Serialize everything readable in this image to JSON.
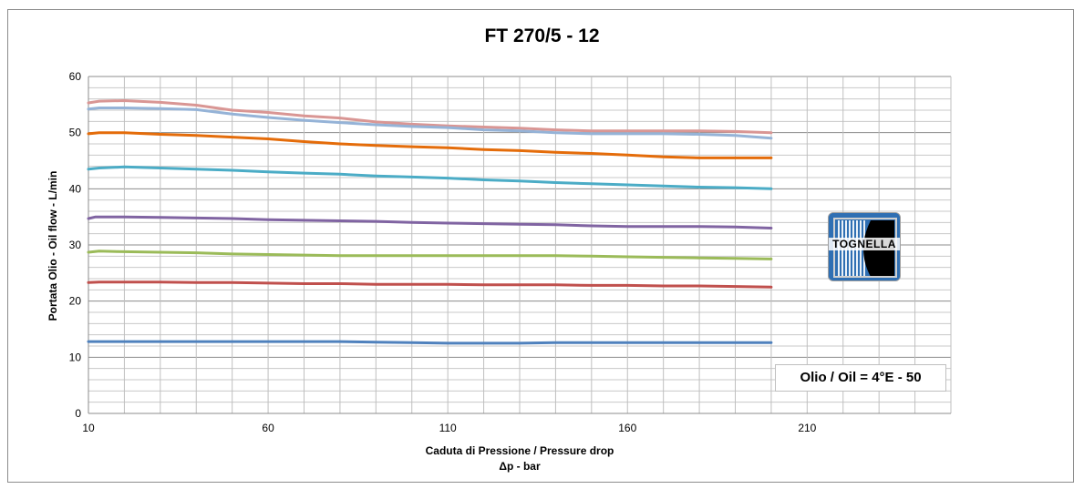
{
  "chart_data": {
    "type": "line",
    "title": "FT 270/5 - 12",
    "ylabel": "Portata Olio - Oil flow - L/min",
    "xlabel": "Caduta di Pressione / Pressure drop",
    "xlabel_line2": "Δp - bar",
    "xlim": [
      10,
      250
    ],
    "ylim": [
      0,
      60
    ],
    "xticks": [
      10,
      60,
      110,
      160,
      210
    ],
    "yticks": [
      0,
      10,
      20,
      30,
      40,
      50,
      60
    ],
    "grid": true,
    "annotation": "Olio / Oil = 4°E - 50",
    "logo_text": "TOGNELLA",
    "series": [
      {
        "color": "#d99694",
        "points": [
          [
            10,
            55.3
          ],
          [
            13,
            55.6
          ],
          [
            20,
            55.7
          ],
          [
            30,
            55.4
          ],
          [
            40,
            54.9
          ],
          [
            50,
            54.0
          ],
          [
            60,
            53.6
          ],
          [
            70,
            53.0
          ],
          [
            80,
            52.6
          ],
          [
            90,
            51.9
          ],
          [
            100,
            51.5
          ],
          [
            110,
            51.2
          ],
          [
            120,
            51.0
          ],
          [
            130,
            50.8
          ],
          [
            140,
            50.5
          ],
          [
            150,
            50.3
          ],
          [
            160,
            50.3
          ],
          [
            170,
            50.3
          ],
          [
            180,
            50.3
          ],
          [
            190,
            50.2
          ],
          [
            200,
            50.0
          ]
        ]
      },
      {
        "color": "#95b3d7",
        "points": [
          [
            10,
            54.2
          ],
          [
            13,
            54.4
          ],
          [
            20,
            54.4
          ],
          [
            30,
            54.3
          ],
          [
            40,
            54.1
          ],
          [
            50,
            53.3
          ],
          [
            60,
            52.7
          ],
          [
            70,
            52.2
          ],
          [
            80,
            51.8
          ],
          [
            90,
            51.4
          ],
          [
            100,
            51.1
          ],
          [
            110,
            50.9
          ],
          [
            120,
            50.5
          ],
          [
            130,
            50.3
          ],
          [
            140,
            50.0
          ],
          [
            150,
            49.8
          ],
          [
            160,
            49.8
          ],
          [
            170,
            49.8
          ],
          [
            180,
            49.7
          ],
          [
            190,
            49.5
          ],
          [
            200,
            49.0
          ]
        ]
      },
      {
        "color": "#e46c0a",
        "points": [
          [
            10,
            49.8
          ],
          [
            13,
            50.0
          ],
          [
            20,
            50.0
          ],
          [
            30,
            49.7
          ],
          [
            40,
            49.5
          ],
          [
            50,
            49.2
          ],
          [
            60,
            48.9
          ],
          [
            70,
            48.4
          ],
          [
            80,
            48.0
          ],
          [
            90,
            47.7
          ],
          [
            100,
            47.5
          ],
          [
            110,
            47.3
          ],
          [
            120,
            47.0
          ],
          [
            130,
            46.8
          ],
          [
            140,
            46.5
          ],
          [
            150,
            46.3
          ],
          [
            160,
            46.0
          ],
          [
            170,
            45.7
          ],
          [
            180,
            45.5
          ],
          [
            190,
            45.5
          ],
          [
            200,
            45.5
          ]
        ]
      },
      {
        "color": "#4bacc6",
        "points": [
          [
            10,
            43.5
          ],
          [
            13,
            43.7
          ],
          [
            20,
            43.9
          ],
          [
            30,
            43.7
          ],
          [
            40,
            43.5
          ],
          [
            50,
            43.3
          ],
          [
            60,
            43.0
          ],
          [
            70,
            42.8
          ],
          [
            80,
            42.6
          ],
          [
            90,
            42.3
          ],
          [
            100,
            42.1
          ],
          [
            110,
            41.9
          ],
          [
            120,
            41.6
          ],
          [
            130,
            41.4
          ],
          [
            140,
            41.1
          ],
          [
            150,
            40.9
          ],
          [
            160,
            40.7
          ],
          [
            170,
            40.5
          ],
          [
            180,
            40.3
          ],
          [
            190,
            40.2
          ],
          [
            200,
            40.0
          ]
        ]
      },
      {
        "color": "#8064a2",
        "points": [
          [
            10,
            34.7
          ],
          [
            12,
            35.0
          ],
          [
            20,
            35.0
          ],
          [
            30,
            34.9
          ],
          [
            40,
            34.8
          ],
          [
            50,
            34.7
          ],
          [
            60,
            34.5
          ],
          [
            70,
            34.4
          ],
          [
            80,
            34.3
          ],
          [
            90,
            34.2
          ],
          [
            100,
            34.0
          ],
          [
            110,
            33.9
          ],
          [
            120,
            33.8
          ],
          [
            130,
            33.7
          ],
          [
            140,
            33.6
          ],
          [
            150,
            33.4
          ],
          [
            160,
            33.3
          ],
          [
            170,
            33.3
          ],
          [
            180,
            33.3
          ],
          [
            190,
            33.2
          ],
          [
            200,
            33.0
          ]
        ]
      },
      {
        "color": "#9bbb59",
        "points": [
          [
            10,
            28.7
          ],
          [
            13,
            28.9
          ],
          [
            20,
            28.8
          ],
          [
            30,
            28.7
          ],
          [
            40,
            28.6
          ],
          [
            50,
            28.4
          ],
          [
            60,
            28.3
          ],
          [
            70,
            28.2
          ],
          [
            80,
            28.1
          ],
          [
            90,
            28.1
          ],
          [
            100,
            28.1
          ],
          [
            110,
            28.1
          ],
          [
            120,
            28.1
          ],
          [
            130,
            28.1
          ],
          [
            140,
            28.1
          ],
          [
            150,
            28.0
          ],
          [
            160,
            27.9
          ],
          [
            170,
            27.8
          ],
          [
            180,
            27.7
          ],
          [
            190,
            27.6
          ],
          [
            200,
            27.5
          ]
        ]
      },
      {
        "color": "#c0504d",
        "points": [
          [
            10,
            23.3
          ],
          [
            13,
            23.4
          ],
          [
            20,
            23.4
          ],
          [
            30,
            23.4
          ],
          [
            40,
            23.3
          ],
          [
            50,
            23.3
          ],
          [
            60,
            23.2
          ],
          [
            70,
            23.1
          ],
          [
            80,
            23.1
          ],
          [
            90,
            23.0
          ],
          [
            100,
            23.0
          ],
          [
            110,
            23.0
          ],
          [
            120,
            22.9
          ],
          [
            130,
            22.9
          ],
          [
            140,
            22.9
          ],
          [
            150,
            22.8
          ],
          [
            160,
            22.8
          ],
          [
            170,
            22.7
          ],
          [
            180,
            22.7
          ],
          [
            190,
            22.6
          ],
          [
            200,
            22.5
          ]
        ]
      },
      {
        "color": "#4f81bd",
        "points": [
          [
            10,
            12.8
          ],
          [
            20,
            12.8
          ],
          [
            30,
            12.8
          ],
          [
            40,
            12.8
          ],
          [
            50,
            12.8
          ],
          [
            60,
            12.8
          ],
          [
            70,
            12.8
          ],
          [
            80,
            12.8
          ],
          [
            90,
            12.7
          ],
          [
            100,
            12.6
          ],
          [
            110,
            12.5
          ],
          [
            120,
            12.5
          ],
          [
            130,
            12.5
          ],
          [
            140,
            12.6
          ],
          [
            150,
            12.6
          ],
          [
            160,
            12.6
          ],
          [
            170,
            12.6
          ],
          [
            180,
            12.6
          ],
          [
            190,
            12.6
          ],
          [
            200,
            12.6
          ]
        ]
      }
    ]
  }
}
